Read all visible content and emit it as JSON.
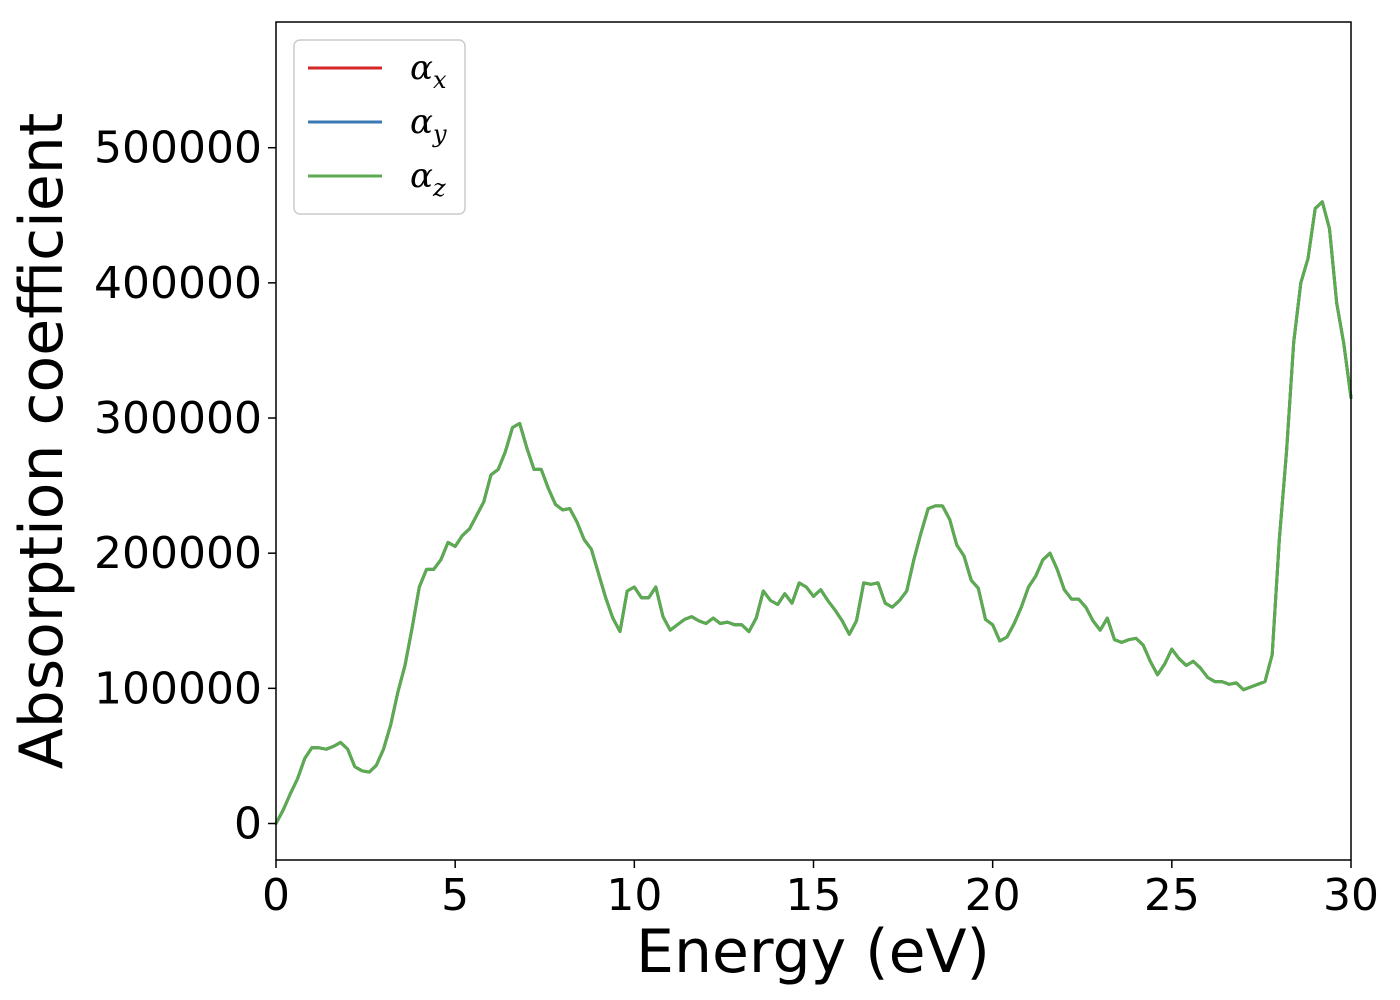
{
  "chart_data": {
    "type": "line",
    "title": "",
    "xlabel": "Energy (eV)",
    "ylabel": "Absorption coefficient",
    "xlim": [
      0,
      30
    ],
    "ylim": [
      -27000,
      593000
    ],
    "xticks": [
      0,
      5,
      10,
      15,
      20,
      25,
      30
    ],
    "xtick_labels": [
      "0",
      "5",
      "10",
      "15",
      "20",
      "25",
      "30"
    ],
    "yticks": [
      0,
      100000,
      200000,
      300000,
      400000,
      500000
    ],
    "ytick_labels": [
      "0",
      "100000",
      "200000",
      "300000",
      "400000",
      "500000"
    ],
    "grid": false,
    "legend_position": "top-left",
    "x": [
      0,
      0.2,
      0.4,
      0.6,
      0.8,
      1.0,
      1.2,
      1.4,
      1.6,
      1.8,
      2.0,
      2.2,
      2.4,
      2.6,
      2.8,
      3.0,
      3.2,
      3.4,
      3.6,
      3.8,
      4.0,
      4.2,
      4.4,
      4.6,
      4.8,
      5.0,
      5.2,
      5.4,
      5.6,
      5.8,
      6.0,
      6.2,
      6.4,
      6.6,
      6.8,
      7.0,
      7.2,
      7.4,
      7.6,
      7.8,
      8.0,
      8.2,
      8.4,
      8.6,
      8.8,
      9.0,
      9.2,
      9.4,
      9.6,
      9.8,
      10.0,
      10.2,
      10.4,
      10.6,
      10.8,
      11.0,
      11.2,
      11.4,
      11.6,
      11.8,
      12.0,
      12.2,
      12.4,
      12.6,
      12.8,
      13.0,
      13.2,
      13.4,
      13.6,
      13.8,
      14.0,
      14.2,
      14.4,
      14.6,
      14.8,
      15.0,
      15.2,
      15.4,
      15.6,
      15.8,
      16.0,
      16.2,
      16.4,
      16.6,
      16.8,
      17.0,
      17.2,
      17.4,
      17.6,
      17.8,
      18.0,
      18.2,
      18.4,
      18.6,
      18.8,
      19.0,
      19.2,
      19.4,
      19.6,
      19.8,
      20.0,
      20.2,
      20.4,
      20.6,
      20.8,
      21.0,
      21.2,
      21.4,
      21.6,
      21.8,
      22.0,
      22.2,
      22.4,
      22.6,
      22.8,
      23.0,
      23.2,
      23.4,
      23.6,
      23.8,
      24.0,
      24.2,
      24.4,
      24.6,
      24.8,
      25.0,
      25.2,
      25.4,
      25.6,
      25.8,
      26.0,
      26.2,
      26.4,
      26.6,
      26.8,
      27.0,
      27.2,
      27.4,
      27.6,
      27.8,
      28.0,
      28.2,
      28.4,
      28.6,
      28.8,
      29.0,
      29.2,
      29.4,
      29.6,
      29.8,
      30.0
    ],
    "series": [
      {
        "name": "α_x",
        "color": "#d62728",
        "values": [
          0,
          10000,
          22000,
          33000,
          48000,
          56000,
          56000,
          55000,
          57000,
          60000,
          55000,
          42000,
          39000,
          38000,
          43000,
          55000,
          73000,
          97000,
          117000,
          145000,
          175000,
          188000,
          188000,
          195000,
          208000,
          205000,
          213000,
          218000,
          228000,
          238000,
          258000,
          262000,
          275000,
          293000,
          296000,
          278000,
          262000,
          262000,
          248000,
          236000,
          232000,
          233000,
          223000,
          210000,
          203000,
          185000,
          167000,
          152000,
          142000,
          172000,
          175000,
          167000,
          167000,
          175000,
          153000,
          143000,
          147000,
          151000,
          153000,
          150000,
          148000,
          152000,
          148000,
          149000,
          147000,
          147000,
          142000,
          152000,
          172000,
          165000,
          162000,
          170000,
          163000,
          178000,
          175000,
          168000,
          173000,
          165000,
          158000,
          150000,
          140000,
          150000,
          178000,
          177000,
          178000,
          163000,
          160000,
          165000,
          172000,
          195000,
          215000,
          233000,
          235000,
          235000,
          225000,
          206000,
          198000,
          180000,
          174000,
          151000,
          147000,
          135000,
          138000,
          148000,
          160000,
          175000,
          183000,
          195000,
          200000,
          188000,
          173000,
          166000,
          166000,
          160000,
          150000,
          143000,
          152000,
          136000,
          134000,
          136000,
          137000,
          132000,
          120000,
          110000,
          118000,
          129000,
          122000,
          117000,
          120000,
          115000,
          108000,
          105000,
          105000,
          103000,
          104000,
          99000,
          101000,
          103000,
          105000,
          125000,
          210000,
          275000,
          356000,
          400000,
          418000,
          455000,
          460000,
          440000,
          385000,
          355000,
          315000
        ]
      },
      {
        "name": "α_y",
        "color": "#3a78b4",
        "values": [
          0,
          10000,
          22000,
          33000,
          48000,
          56000,
          56000,
          55000,
          57000,
          60000,
          55000,
          42000,
          39000,
          38000,
          43000,
          55000,
          73000,
          97000,
          117000,
          145000,
          175000,
          188000,
          188000,
          195000,
          208000,
          205000,
          213000,
          218000,
          228000,
          238000,
          258000,
          262000,
          275000,
          293000,
          296000,
          278000,
          262000,
          262000,
          248000,
          236000,
          232000,
          233000,
          223000,
          210000,
          203000,
          185000,
          167000,
          152000,
          142000,
          172000,
          175000,
          167000,
          167000,
          175000,
          153000,
          143000,
          147000,
          151000,
          153000,
          150000,
          148000,
          152000,
          148000,
          149000,
          147000,
          147000,
          142000,
          152000,
          172000,
          165000,
          162000,
          170000,
          163000,
          178000,
          175000,
          168000,
          173000,
          165000,
          158000,
          150000,
          140000,
          150000,
          178000,
          177000,
          178000,
          163000,
          160000,
          165000,
          172000,
          195000,
          215000,
          233000,
          235000,
          235000,
          225000,
          206000,
          198000,
          180000,
          174000,
          151000,
          147000,
          135000,
          138000,
          148000,
          160000,
          175000,
          183000,
          195000,
          200000,
          188000,
          173000,
          166000,
          166000,
          160000,
          150000,
          143000,
          152000,
          136000,
          134000,
          136000,
          137000,
          132000,
          120000,
          110000,
          118000,
          129000,
          122000,
          117000,
          120000,
          115000,
          108000,
          105000,
          105000,
          103000,
          104000,
          99000,
          101000,
          103000,
          105000,
          125000,
          210000,
          275000,
          356000,
          400000,
          418000,
          455000,
          460000,
          440000,
          385000,
          355000,
          315000
        ]
      },
      {
        "name": "α_z",
        "color": "#5aac4e",
        "values": [
          0,
          10000,
          22000,
          33000,
          48000,
          56000,
          56000,
          55000,
          57000,
          60000,
          55000,
          42000,
          39000,
          38000,
          43000,
          55000,
          73000,
          97000,
          117000,
          145000,
          175000,
          188000,
          188000,
          195000,
          208000,
          205000,
          213000,
          218000,
          228000,
          238000,
          258000,
          262000,
          275000,
          293000,
          296000,
          278000,
          262000,
          262000,
          248000,
          236000,
          232000,
          233000,
          223000,
          210000,
          203000,
          185000,
          167000,
          152000,
          142000,
          172000,
          175000,
          167000,
          167000,
          175000,
          153000,
          143000,
          147000,
          151000,
          153000,
          150000,
          148000,
          152000,
          148000,
          149000,
          147000,
          147000,
          142000,
          152000,
          172000,
          165000,
          162000,
          170000,
          163000,
          178000,
          175000,
          168000,
          173000,
          165000,
          158000,
          150000,
          140000,
          150000,
          178000,
          177000,
          178000,
          163000,
          160000,
          165000,
          172000,
          195000,
          215000,
          233000,
          235000,
          235000,
          225000,
          206000,
          198000,
          180000,
          174000,
          151000,
          147000,
          135000,
          138000,
          148000,
          160000,
          175000,
          183000,
          195000,
          200000,
          188000,
          173000,
          166000,
          166000,
          160000,
          150000,
          143000,
          152000,
          136000,
          134000,
          136000,
          137000,
          132000,
          120000,
          110000,
          118000,
          129000,
          122000,
          117000,
          120000,
          115000,
          108000,
          105000,
          105000,
          103000,
          104000,
          99000,
          101000,
          103000,
          105000,
          125000,
          210000,
          275000,
          356000,
          400000,
          418000,
          455000,
          460000,
          440000,
          385000,
          355000,
          315000
        ]
      }
    ],
    "legend": [
      {
        "symbol": "α",
        "sub": "x",
        "color": "#d62728"
      },
      {
        "symbol": "α",
        "sub": "y",
        "color": "#3a78b4"
      },
      {
        "symbol": "α",
        "sub": "z",
        "color": "#5aac4e"
      }
    ]
  }
}
